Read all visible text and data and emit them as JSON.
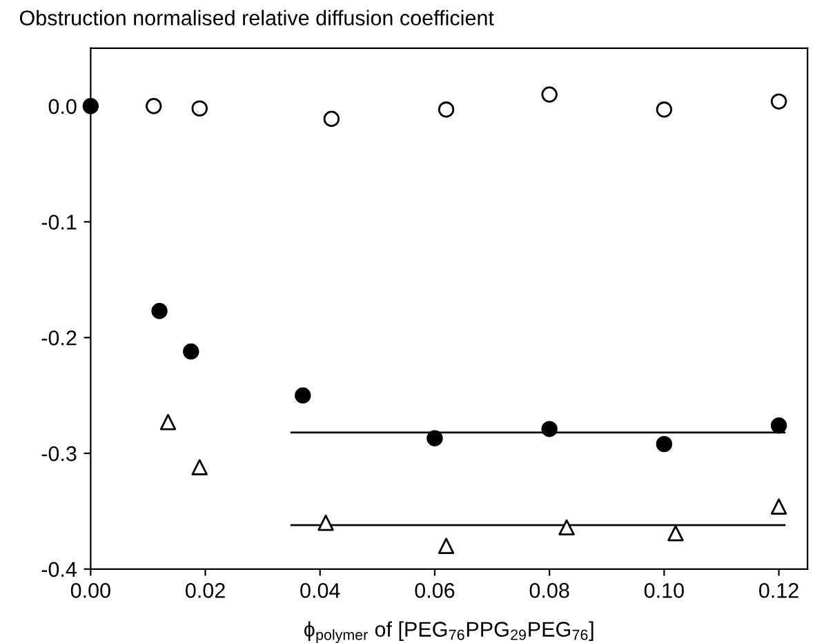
{
  "chart_data": {
    "type": "scatter",
    "title": "Obstruction normalised relative diffusion coefficient",
    "xlabel": "ϕ$_{polymer}$ of [PEG$_{76}$PPG$_{29}$PEG$_{76}$]",
    "xlim": [
      0.0,
      0.125
    ],
    "xticks": [
      {
        "value": 0.0,
        "label": "0.00"
      },
      {
        "value": 0.02,
        "label": "0.02"
      },
      {
        "value": 0.04,
        "label": "0.04"
      },
      {
        "value": 0.06,
        "label": "0.06"
      },
      {
        "value": 0.08,
        "label": "0.08"
      },
      {
        "value": 0.1,
        "label": "0.10"
      },
      {
        "value": 0.12,
        "label": "0.12"
      }
    ],
    "ylim": [
      -0.4,
      0.05
    ],
    "yticks": [
      {
        "value": -0.4,
        "label": "-0.4"
      },
      {
        "value": -0.3,
        "label": "-0.3"
      },
      {
        "value": -0.2,
        "label": "-0.2"
      },
      {
        "value": -0.1,
        "label": "-0.1"
      },
      {
        "value": 0.0,
        "label": "0.0"
      }
    ],
    "grid": false,
    "series": [
      {
        "color": "#ffffff",
        "marker": "circle",
        "x": [
          0.011,
          0.019,
          0.042,
          0.062,
          0.08,
          0.1,
          0.12
        ],
        "values": [
          0.0,
          -0.002,
          -0.011,
          -0.003,
          0.01,
          -0.003,
          0.004
        ]
      },
      {
        "color": "#000000",
        "marker": "circle",
        "x": [
          0.0,
          0.012,
          0.0175,
          0.037,
          0.06,
          0.08,
          0.1,
          0.12
        ],
        "values": [
          0.0,
          -0.177,
          -0.212,
          -0.25,
          -0.287,
          -0.279,
          -0.292,
          -0.276
        ]
      },
      {
        "color": "#ffffff",
        "marker": "triangle",
        "x": [
          0.0135,
          0.019,
          0.041,
          0.062,
          0.083,
          0.102,
          0.12
        ],
        "values": [
          -0.273,
          -0.312,
          -0.36,
          -0.38,
          -0.364,
          -0.369,
          -0.346
        ]
      },
      {
        "type": "line",
        "color": "#000000",
        "x": [
          0.035,
          0.121
        ],
        "values": [
          -0.282,
          -0.282
        ]
      },
      {
        "type": "line",
        "color": "#000000",
        "x": [
          0.035,
          0.121
        ],
        "values": [
          -0.362,
          -0.362
        ]
      }
    ]
  }
}
